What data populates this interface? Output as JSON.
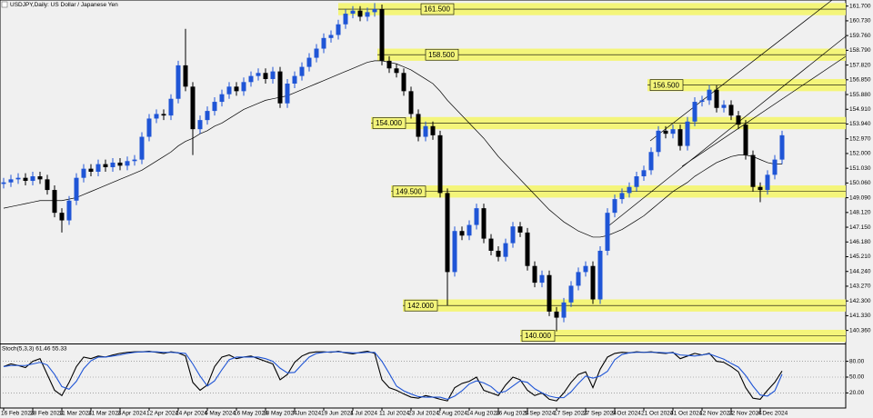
{
  "chart_data": [
    {
      "type": "candlestick",
      "title": "USDJPY,Daily: US Dollar / Japanese Yen",
      "up_color": "#1f55d6",
      "down_color": "#000000",
      "ma_color": "#000000",
      "level_color": "#f4f57a",
      "categories": [
        "16 Feb 2024",
        null,
        null,
        null,
        "28 Feb 2024",
        null,
        null,
        null,
        "11 Mar 2024",
        null,
        null,
        null,
        "21 Mar 2024",
        null,
        null,
        null,
        "2 Apr 2024",
        null,
        null,
        null,
        "12 Apr 2024",
        null,
        null,
        null,
        "24 Apr 2024",
        null,
        null,
        null,
        "6 May 2024",
        null,
        null,
        null,
        "16 May 2024",
        null,
        null,
        null,
        "28 May 2024",
        null,
        null,
        null,
        "7 Jun 2024",
        null,
        null,
        null,
        "19 Jun 2024",
        null,
        null,
        null,
        "1 Jul 2024",
        null,
        null,
        null,
        "11 Jul 2024",
        null,
        null,
        null,
        "23 Jul 2024",
        null,
        null,
        null,
        "2 Aug 2024",
        null,
        null,
        null,
        "14 Aug 2024",
        null,
        null,
        null,
        "26 Aug 2024",
        null,
        null,
        null,
        "5 Sep 2024",
        null,
        null,
        null,
        "17 Sep 2024",
        null,
        null,
        null,
        "27 Sep 2024",
        null,
        null,
        null,
        "9 Oct 2024",
        null,
        null,
        null,
        "21 Oct 2024",
        null,
        null,
        null,
        "31 Oct 2024",
        null,
        null,
        null,
        "12 Nov 2024",
        null,
        null,
        null,
        "22 Nov 2024",
        null,
        null,
        null,
        "4 Dec 2024",
        null,
        null,
        null
      ],
      "open": [
        150.0,
        150.1,
        150.3,
        150.4,
        150.2,
        150.5,
        150.3,
        149.6,
        148.1,
        147.6,
        148.9,
        150.4,
        151.0,
        150.8,
        151.3,
        151.1,
        151.4,
        151.2,
        151.5,
        151.6,
        153.1,
        154.3,
        154.6,
        154.5,
        155.6,
        157.8,
        156.4,
        153.6,
        154.2,
        154.8,
        155.4,
        155.9,
        156.4,
        156.1,
        156.7,
        157.1,
        157.3,
        156.9,
        157.4,
        155.3,
        156.6,
        157.1,
        157.7,
        158.3,
        158.9,
        159.6,
        159.8,
        160.5,
        161.2,
        161.4,
        161.0,
        161.3,
        161.5,
        158.1,
        157.6,
        157.3,
        156.1,
        154.6,
        153.1,
        153.8,
        153.2,
        149.4,
        144.2,
        146.9,
        146.6,
        147.3,
        148.4,
        146.4,
        145.6,
        145.2,
        146.1,
        147.2,
        146.8,
        144.6,
        143.5,
        144.0,
        141.6,
        141.2,
        142.2,
        143.3,
        144.2,
        144.6,
        142.4,
        145.6,
        148.1,
        149.0,
        149.4,
        149.8,
        150.5,
        150.9,
        152.1,
        153.5,
        153.3,
        153.6,
        152.5,
        154.1,
        155.4,
        155.5,
        156.2,
        155.0,
        155.2,
        154.5,
        153.9,
        151.9,
        149.8,
        149.6,
        150.6,
        151.6
      ],
      "high": [
        150.4,
        150.6,
        150.7,
        150.7,
        150.8,
        150.8,
        150.6,
        149.9,
        148.4,
        149.2,
        150.7,
        151.3,
        151.3,
        151.6,
        151.6,
        151.7,
        151.7,
        151.8,
        151.9,
        153.4,
        154.6,
        154.9,
        154.9,
        155.9,
        158.1,
        160.2,
        156.7,
        154.5,
        155.1,
        155.7,
        156.2,
        156.7,
        156.7,
        157.0,
        157.4,
        157.6,
        157.6,
        157.7,
        157.7,
        156.9,
        157.4,
        158.0,
        158.6,
        159.2,
        159.9,
        160.1,
        160.8,
        161.5,
        161.7,
        161.7,
        161.6,
        161.9,
        161.8,
        158.4,
        157.9,
        157.6,
        156.4,
        154.9,
        154.1,
        154.1,
        153.5,
        149.7,
        147.2,
        147.2,
        147.6,
        148.7,
        148.7,
        146.7,
        145.9,
        146.4,
        147.5,
        147.5,
        147.1,
        144.9,
        144.3,
        144.3,
        141.9,
        142.5,
        143.6,
        144.5,
        144.9,
        144.9,
        145.9,
        148.4,
        149.3,
        149.7,
        150.1,
        150.8,
        151.2,
        152.4,
        153.8,
        153.8,
        153.9,
        153.9,
        154.4,
        155.7,
        155.8,
        156.5,
        156.5,
        155.5,
        155.5,
        154.8,
        154.2,
        152.2,
        150.1,
        150.9,
        151.9,
        153.5
      ],
      "low": [
        149.7,
        149.8,
        150.0,
        149.9,
        149.9,
        150.0,
        149.3,
        147.8,
        146.8,
        147.3,
        148.6,
        150.1,
        150.5,
        150.5,
        150.8,
        150.8,
        150.9,
        150.9,
        151.2,
        151.3,
        152.8,
        154.0,
        154.2,
        154.2,
        155.3,
        156.1,
        151.9,
        153.3,
        153.9,
        154.5,
        155.1,
        155.6,
        155.8,
        155.8,
        156.4,
        156.8,
        156.6,
        156.6,
        155.0,
        155.0,
        156.3,
        156.8,
        157.4,
        158.0,
        158.6,
        159.3,
        159.5,
        160.2,
        160.9,
        160.7,
        160.7,
        161.0,
        157.8,
        157.3,
        157.0,
        155.8,
        154.3,
        152.8,
        152.8,
        152.9,
        149.1,
        142.0,
        143.9,
        146.3,
        146.3,
        147.0,
        146.1,
        145.3,
        144.9,
        144.9,
        145.8,
        146.5,
        144.3,
        143.2,
        143.2,
        141.3,
        140.3,
        140.9,
        141.9,
        143.0,
        143.9,
        142.1,
        142.1,
        145.3,
        147.8,
        148.7,
        149.1,
        149.5,
        150.2,
        150.6,
        151.8,
        153.0,
        153.0,
        152.2,
        152.2,
        153.8,
        155.1,
        155.2,
        154.7,
        154.7,
        154.2,
        153.6,
        151.6,
        149.5,
        148.8,
        149.3,
        150.3,
        151.3
      ],
      "close": [
        150.1,
        150.3,
        150.4,
        150.2,
        150.5,
        150.3,
        149.6,
        148.1,
        147.6,
        148.9,
        150.4,
        151.0,
        150.8,
        151.3,
        151.1,
        151.4,
        151.2,
        151.5,
        151.6,
        153.1,
        154.3,
        154.6,
        154.5,
        155.6,
        157.8,
        156.4,
        153.6,
        154.2,
        154.8,
        155.4,
        155.9,
        156.4,
        156.1,
        156.7,
        157.1,
        157.3,
        156.9,
        157.4,
        155.3,
        156.6,
        157.1,
        157.7,
        158.3,
        158.9,
        159.6,
        159.8,
        160.5,
        161.2,
        161.4,
        161.0,
        161.3,
        161.5,
        158.1,
        157.6,
        157.3,
        156.1,
        154.6,
        153.1,
        153.8,
        153.2,
        149.4,
        144.2,
        146.9,
        146.6,
        147.3,
        148.4,
        146.4,
        145.6,
        145.2,
        146.1,
        147.2,
        146.8,
        144.6,
        143.5,
        144.0,
        141.6,
        141.2,
        142.2,
        143.3,
        144.2,
        144.6,
        142.4,
        145.6,
        148.1,
        149.0,
        149.4,
        149.8,
        150.5,
        150.9,
        152.1,
        153.5,
        153.3,
        153.6,
        152.5,
        154.1,
        155.4,
        155.5,
        156.2,
        155.0,
        155.2,
        154.5,
        153.9,
        151.9,
        149.8,
        149.6,
        150.6,
        151.6,
        153.2
      ],
      "moving_average": [
        148.4,
        148.5,
        148.6,
        148.7,
        148.8,
        148.9,
        148.9,
        148.9,
        148.9,
        149.0,
        149.1,
        149.3,
        149.5,
        149.7,
        149.9,
        150.1,
        150.3,
        150.5,
        150.7,
        150.9,
        151.2,
        151.5,
        151.8,
        152.1,
        152.5,
        152.8,
        153.0,
        153.3,
        153.5,
        153.8,
        154.0,
        154.3,
        154.6,
        154.9,
        155.1,
        155.3,
        155.5,
        155.6,
        155.7,
        155.8,
        156.0,
        156.2,
        156.4,
        156.6,
        156.8,
        157.0,
        157.2,
        157.4,
        157.6,
        157.8,
        158.0,
        158.1,
        158.1,
        158.0,
        157.9,
        157.7,
        157.5,
        157.2,
        156.9,
        156.6,
        156.1,
        155.5,
        155.0,
        154.5,
        154.0,
        153.5,
        153.0,
        152.4,
        151.8,
        151.3,
        150.8,
        150.3,
        149.8,
        149.3,
        148.8,
        148.3,
        147.9,
        147.5,
        147.2,
        146.9,
        146.7,
        146.5,
        146.5,
        146.6,
        146.8,
        147.0,
        147.3,
        147.6,
        147.9,
        148.3,
        148.7,
        149.1,
        149.5,
        149.8,
        150.1,
        150.5,
        150.8,
        151.1,
        151.4,
        151.6,
        151.8,
        151.9,
        151.9,
        151.8,
        151.6,
        151.4,
        151.3,
        151.3
      ],
      "levels": [
        {
          "value": 161.5,
          "label": "161.500"
        },
        {
          "value": 158.5,
          "label": "158.500"
        },
        {
          "value": 156.5,
          "label": "156.500"
        },
        {
          "value": 154.0,
          "label": "154.000"
        },
        {
          "value": 149.5,
          "label": "149.500"
        },
        {
          "value": 142.0,
          "label": "142.000"
        },
        {
          "value": 140.0,
          "label": "140.000"
        }
      ],
      "ylim": [
        139.5,
        162.1
      ],
      "yticks": [
        {
          "value": 140.36,
          "label": "140.360"
        },
        {
          "value": 141.33,
          "label": "141.330"
        },
        {
          "value": 142.3,
          "label": "142.300"
        },
        {
          "value": 143.27,
          "label": "143.270"
        },
        {
          "value": 144.24,
          "label": "144.240"
        },
        {
          "value": 145.21,
          "label": "145.210"
        },
        {
          "value": 146.18,
          "label": "146.180"
        },
        {
          "value": 147.15,
          "label": "147.150"
        },
        {
          "value": 148.12,
          "label": "148.120"
        },
        {
          "value": 149.09,
          "label": "149.090"
        },
        {
          "value": 150.06,
          "label": "150.060"
        },
        {
          "value": 151.03,
          "label": "151.030"
        },
        {
          "value": 152.0,
          "label": "152.000"
        },
        {
          "value": 152.97,
          "label": "152.970"
        },
        {
          "value": 153.94,
          "label": "153.940"
        },
        {
          "value": 154.91,
          "label": "154.910"
        },
        {
          "value": 155.88,
          "label": "155.880"
        },
        {
          "value": 156.85,
          "label": "156.850"
        },
        {
          "value": 157.82,
          "label": "157.820"
        },
        {
          "value": 158.79,
          "label": "158.790"
        },
        {
          "value": 159.76,
          "label": "159.760"
        },
        {
          "value": 160.73,
          "label": "160.730"
        },
        {
          "value": 161.7,
          "label": "161.700"
        }
      ]
    },
    {
      "type": "line",
      "title": "Stoch(5,3,3) 61.46 55.33",
      "series": [
        {
          "color": "#000000",
          "values": [
            70,
            75,
            72,
            68,
            80,
            85,
            55,
            25,
            15,
            40,
            70,
            88,
            85,
            90,
            88,
            92,
            95,
            97,
            98,
            98,
            99,
            97,
            95,
            98,
            96,
            90,
            40,
            25,
            35,
            70,
            88,
            92,
            85,
            88,
            90,
            85,
            80,
            75,
            45,
            55,
            78,
            90,
            96,
            98,
            98,
            97,
            99,
            96,
            94,
            97,
            99,
            95,
            45,
            30,
            25,
            18,
            12,
            10,
            15,
            12,
            8,
            5,
            30,
            38,
            42,
            50,
            25,
            20,
            15,
            35,
            50,
            45,
            25,
            15,
            20,
            8,
            5,
            20,
            40,
            55,
            60,
            30,
            65,
            88,
            95,
            97,
            96,
            98,
            97,
            98,
            96,
            95,
            97,
            85,
            90,
            95,
            92,
            95,
            80,
            78,
            70,
            60,
            30,
            10,
            8,
            25,
            40,
            61.46
          ]
        },
        {
          "color": "#1f55d6",
          "values": [
            70,
            72,
            72,
            72,
            75,
            78,
            73,
            55,
            32,
            27,
            42,
            66,
            81,
            88,
            88,
            90,
            92,
            95,
            97,
            98,
            98,
            98,
            97,
            97,
            96,
            95,
            75,
            52,
            33,
            43,
            64,
            83,
            88,
            88,
            88,
            88,
            85,
            80,
            67,
            58,
            59,
            74,
            88,
            95,
            97,
            98,
            98,
            97,
            96,
            96,
            97,
            97,
            80,
            57,
            33,
            24,
            18,
            13,
            12,
            12,
            12,
            8,
            14,
            24,
            37,
            43,
            39,
            32,
            20,
            23,
            33,
            43,
            40,
            28,
            20,
            14,
            11,
            11,
            22,
            38,
            52,
            48,
            52,
            61,
            83,
            93,
            96,
            97,
            97,
            97,
            97,
            96,
            96,
            92,
            91,
            90,
            92,
            94,
            89,
            84,
            76,
            69,
            53,
            33,
            16,
            14,
            24,
            55.33
          ]
        }
      ],
      "ylim": [
        0,
        100
      ],
      "yticks": [
        {
          "value": 20,
          "label": "20.00"
        },
        {
          "value": 50,
          "label": "50.00"
        },
        {
          "value": 80,
          "label": "80.00"
        }
      ]
    }
  ]
}
